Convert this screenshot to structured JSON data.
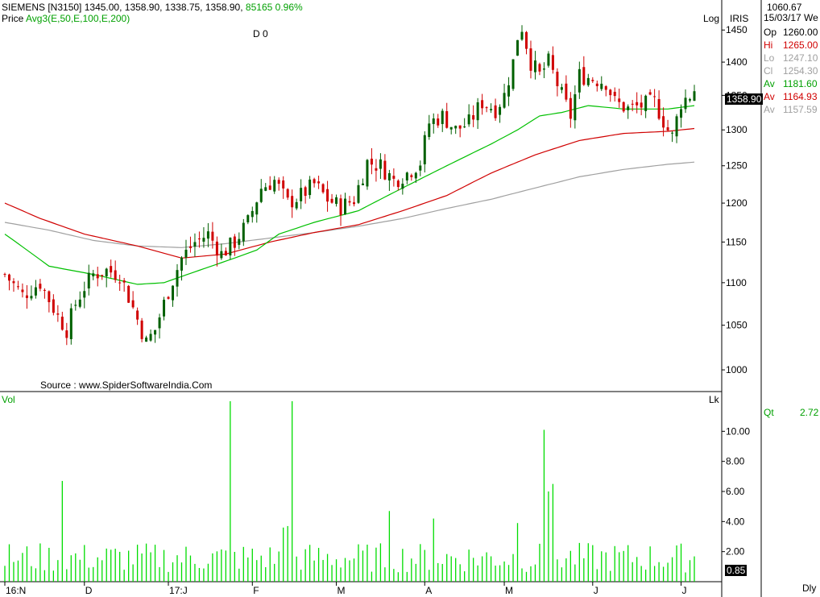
{
  "header": {
    "symbol": "SIEMENS [N3150]",
    "ohlc": "1345.00, 1358.90, 1338.75, 1358.90,",
    "volume": "85165",
    "change": "0.96%",
    "price_label": "Price",
    "indicator": "Avg3(E,50,E,100,E,200)",
    "marker": "D 0",
    "scale": "Log",
    "product": "IRIS"
  },
  "right_panel": {
    "top_value": "1060.67",
    "date": "15/03/17 We",
    "rows": [
      {
        "label": "Op",
        "value": "1260.00",
        "color": "#000000"
      },
      {
        "label": "Hi",
        "value": "1265.00",
        "color": "#d00000"
      },
      {
        "label": "Lo",
        "value": "1247.10",
        "color": "#a0a0a0"
      },
      {
        "label": "Cl",
        "value": "1254.30",
        "color": "#a0a0a0"
      },
      {
        "label": "Av",
        "value": "1181.60",
        "color": "#00a000"
      },
      {
        "label": "Av",
        "value": "1164.93",
        "color": "#d00000"
      },
      {
        "label": "Av",
        "value": "1157.59",
        "color": "#a0a0a0"
      }
    ],
    "qt_label": "Qt",
    "qt_value": "2.72"
  },
  "last_price": "1358.90",
  "last_volume": "0.85",
  "source": "Source : www.SpiderSoftwareIndia.Com",
  "volume_panel": {
    "label": "Vol",
    "unit": "Lk"
  },
  "period": "Dly",
  "colors": {
    "up": "#006000",
    "down": "#d00000",
    "ema50": "#00c000",
    "ema100": "#d00000",
    "ema200": "#a0a0a0",
    "volume": "#00dd00"
  },
  "chart_data": {
    "type": "candlestick",
    "scale": "log",
    "price_ylim": [
      980,
      1480
    ],
    "price_ticks": [
      1000,
      1050,
      1100,
      1150,
      1200,
      1250,
      1300,
      1350,
      1400,
      1450
    ],
    "volume_ylim": [
      0,
      12
    ],
    "volume_ticks": [
      2.0,
      4.0,
      6.0,
      8.0,
      10.0
    ],
    "x_tick_labels": [
      {
        "label": "16:N",
        "index": 0
      },
      {
        "label": "D",
        "index": 18
      },
      {
        "label": "17:J",
        "index": 37
      },
      {
        "label": "F",
        "index": 56
      },
      {
        "label": "M",
        "index": 75
      },
      {
        "label": "A",
        "index": 95
      },
      {
        "label": "M",
        "index": 113
      },
      {
        "label": "J",
        "index": 133
      },
      {
        "label": "J",
        "index": 153
      }
    ],
    "close_anchors": [
      [
        0,
        1110
      ],
      [
        4,
        1085
      ],
      [
        8,
        1100
      ],
      [
        12,
        1060
      ],
      [
        14,
        1045
      ],
      [
        16,
        1075
      ],
      [
        18,
        1095
      ],
      [
        20,
        1110
      ],
      [
        23,
        1115
      ],
      [
        26,
        1110
      ],
      [
        29,
        1070
      ],
      [
        32,
        1030
      ],
      [
        34,
        1045
      ],
      [
        37,
        1090
      ],
      [
        40,
        1130
      ],
      [
        43,
        1150
      ],
      [
        46,
        1160
      ],
      [
        49,
        1135
      ],
      [
        52,
        1150
      ],
      [
        55,
        1175
      ],
      [
        58,
        1220
      ],
      [
        61,
        1230
      ],
      [
        64,
        1200
      ],
      [
        67,
        1210
      ],
      [
        70,
        1225
      ],
      [
        73,
        1205
      ],
      [
        76,
        1195
      ],
      [
        79,
        1205
      ],
      [
        82,
        1255
      ],
      [
        85,
        1250
      ],
      [
        88,
        1230
      ],
      [
        91,
        1240
      ],
      [
        94,
        1255
      ],
      [
        96,
        1310
      ],
      [
        99,
        1320
      ],
      [
        102,
        1300
      ],
      [
        105,
        1310
      ],
      [
        108,
        1340
      ],
      [
        111,
        1330
      ],
      [
        113,
        1350
      ],
      [
        115,
        1400
      ],
      [
        116,
        1440
      ],
      [
        117,
        1455
      ],
      [
        119,
        1400
      ],
      [
        121,
        1380
      ],
      [
        123,
        1400
      ],
      [
        126,
        1350
      ],
      [
        128,
        1320
      ],
      [
        130,
        1380
      ],
      [
        133,
        1375
      ],
      [
        136,
        1370
      ],
      [
        138,
        1340
      ],
      [
        141,
        1330
      ],
      [
        144,
        1335
      ],
      [
        147,
        1340
      ],
      [
        150,
        1300
      ],
      [
        151,
        1290
      ],
      [
        153,
        1340
      ],
      [
        155,
        1350
      ],
      [
        156,
        1358.9
      ]
    ],
    "ema50_anchors": [
      [
        0,
        1160
      ],
      [
        5,
        1140
      ],
      [
        10,
        1120
      ],
      [
        20,
        1110
      ],
      [
        30,
        1098
      ],
      [
        36,
        1100
      ],
      [
        44,
        1115
      ],
      [
        52,
        1130
      ],
      [
        57,
        1140
      ],
      [
        62,
        1160
      ],
      [
        70,
        1175
      ],
      [
        80,
        1190
      ],
      [
        90,
        1220
      ],
      [
        100,
        1250
      ],
      [
        110,
        1280
      ],
      [
        116,
        1300
      ],
      [
        121,
        1320
      ],
      [
        126,
        1325
      ],
      [
        132,
        1335
      ],
      [
        140,
        1330
      ],
      [
        150,
        1330
      ],
      [
        156,
        1335
      ]
    ],
    "ema100_anchors": [
      [
        0,
        1200
      ],
      [
        8,
        1180
      ],
      [
        18,
        1160
      ],
      [
        30,
        1145
      ],
      [
        40,
        1130
      ],
      [
        50,
        1135
      ],
      [
        60,
        1150
      ],
      [
        70,
        1162
      ],
      [
        80,
        1172
      ],
      [
        90,
        1190
      ],
      [
        100,
        1210
      ],
      [
        110,
        1240
      ],
      [
        120,
        1265
      ],
      [
        130,
        1285
      ],
      [
        140,
        1295
      ],
      [
        150,
        1298
      ],
      [
        156,
        1302
      ]
    ],
    "ema200_anchors": [
      [
        0,
        1175
      ],
      [
        10,
        1165
      ],
      [
        20,
        1152
      ],
      [
        30,
        1145
      ],
      [
        40,
        1143
      ],
      [
        50,
        1148
      ],
      [
        60,
        1155
      ],
      [
        70,
        1162
      ],
      [
        80,
        1170
      ],
      [
        90,
        1180
      ],
      [
        100,
        1193
      ],
      [
        110,
        1205
      ],
      [
        120,
        1220
      ],
      [
        130,
        1235
      ],
      [
        140,
        1245
      ],
      [
        150,
        1252
      ],
      [
        156,
        1255
      ]
    ],
    "volume_spikes": [
      [
        13,
        6.7
      ],
      [
        51,
        12.0
      ],
      [
        65,
        12.0
      ],
      [
        64,
        3.7
      ],
      [
        63,
        3.6
      ],
      [
        122,
        10.1
      ],
      [
        123,
        6.0
      ],
      [
        124,
        6.5
      ],
      [
        87,
        4.7
      ],
      [
        97,
        4.2
      ],
      [
        116,
        3.9
      ]
    ]
  }
}
